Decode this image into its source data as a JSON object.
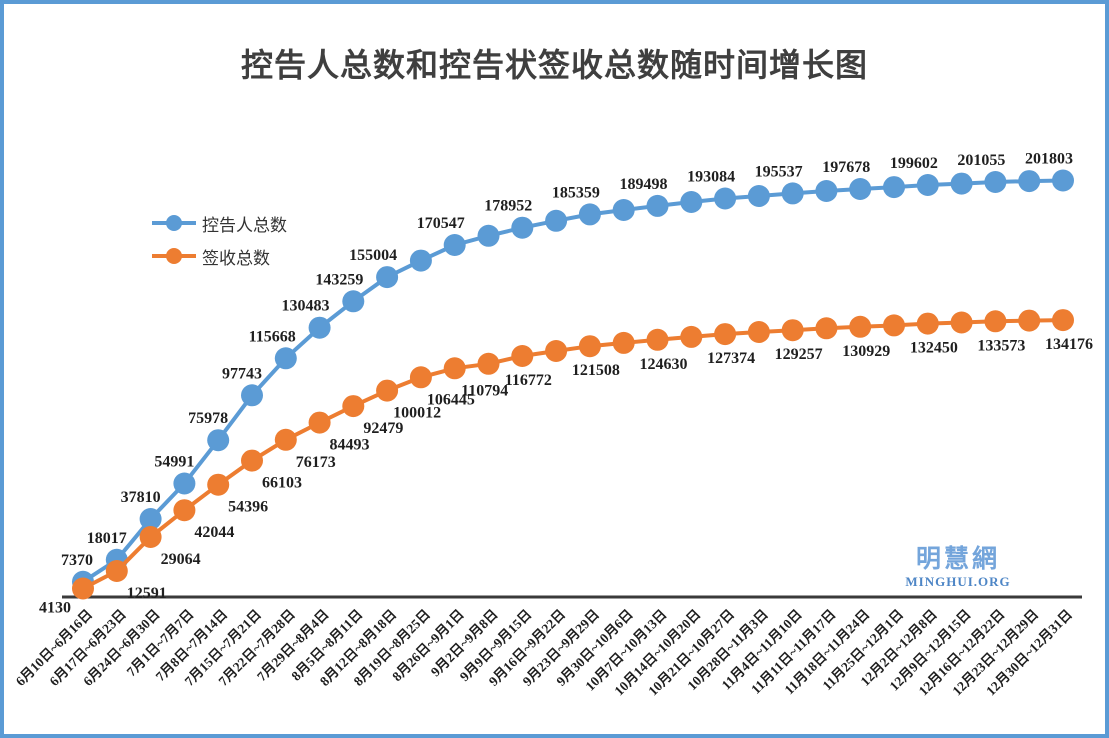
{
  "title": "控告人总数和控告状签收总数随时间增长图",
  "watermark": {
    "name_cjk": "明慧網",
    "name_latin": "MINGHUI.ORG"
  },
  "colors": {
    "series_blue": "#5B9BD5",
    "series_orange": "#ED7D31",
    "frame_border": "#5B9BD5",
    "axis_line": "#3a3a3a",
    "data_label_text": "#1f1f1f",
    "title_text": "#3f3f3f",
    "watermark_cjk": "#74A5DB",
    "watermark_latin": "#4E86C6"
  },
  "chart_data": {
    "type": "line",
    "title": "控告人总数和控告状签收总数随时间增长图",
    "xlabel": "",
    "ylabel": "",
    "ylim": [
      0,
      210000
    ],
    "grid": false,
    "legend_position": "inside-upper-left",
    "x_tick_rotation": -45,
    "marker": "circle",
    "categories": [
      "6月10日~6月16日",
      "6月17日~6月23日",
      "6月24日~6月30日",
      "7月1日~7月7日",
      "7月8日~7月14日",
      "7月15日~7月21日",
      "7月22日~7月28日",
      "7月29日~8月4日",
      "8月5日~8月11日",
      "8月12日~8月18日",
      "8月19日~8月25日",
      "8月26日~9月1日",
      "9月2日~9月8日",
      "9月9日~9月15日",
      "9月16日~9月22日",
      "9月23日~9月29日",
      "9月30日~10月6日",
      "10月7日~10月13日",
      "10月14日~10月20日",
      "10月21日~10月27日",
      "10月28日~11月3日",
      "11月4日~11月10日",
      "11月11日~11月17日",
      "11月18日~11月24日",
      "11月25日~12月1日",
      "12月2日~12月8日",
      "12月9日~12月15日",
      "12月16日~12月22日",
      "12月23日~12月29日",
      "12月30日~12月31日"
    ],
    "series": [
      {
        "name": "控告人总数",
        "color": "#5B9BD5",
        "values": [
          7370,
          18017,
          37810,
          54991,
          75978,
          97743,
          115668,
          130483,
          143259,
          155004,
          163000,
          170547,
          175000,
          178952,
          182300,
          185359,
          187500,
          189498,
          191400,
          193084,
          194300,
          195537,
          196700,
          197678,
          198600,
          199602,
          200300,
          201055,
          201500,
          201803
        ],
        "label_shown": [
          true,
          true,
          true,
          true,
          true,
          true,
          true,
          true,
          true,
          true,
          false,
          true,
          false,
          true,
          false,
          true,
          false,
          true,
          false,
          true,
          false,
          true,
          false,
          true,
          false,
          true,
          false,
          true,
          false,
          true
        ]
      },
      {
        "name": "签收总数",
        "color": "#ED7D31",
        "values": [
          4130,
          12591,
          29064,
          42044,
          54396,
          66103,
          76173,
          84493,
          92479,
          100012,
          106445,
          110794,
          113000,
          116772,
          119200,
          121508,
          123100,
          124630,
          126000,
          127374,
          128400,
          129257,
          130200,
          130929,
          131600,
          132450,
          133000,
          133573,
          133900,
          134176
        ],
        "label_shown": [
          true,
          true,
          true,
          true,
          true,
          true,
          true,
          true,
          true,
          true,
          true,
          true,
          false,
          true,
          false,
          true,
          false,
          true,
          false,
          true,
          false,
          true,
          false,
          true,
          false,
          true,
          false,
          true,
          false,
          true
        ]
      }
    ]
  }
}
